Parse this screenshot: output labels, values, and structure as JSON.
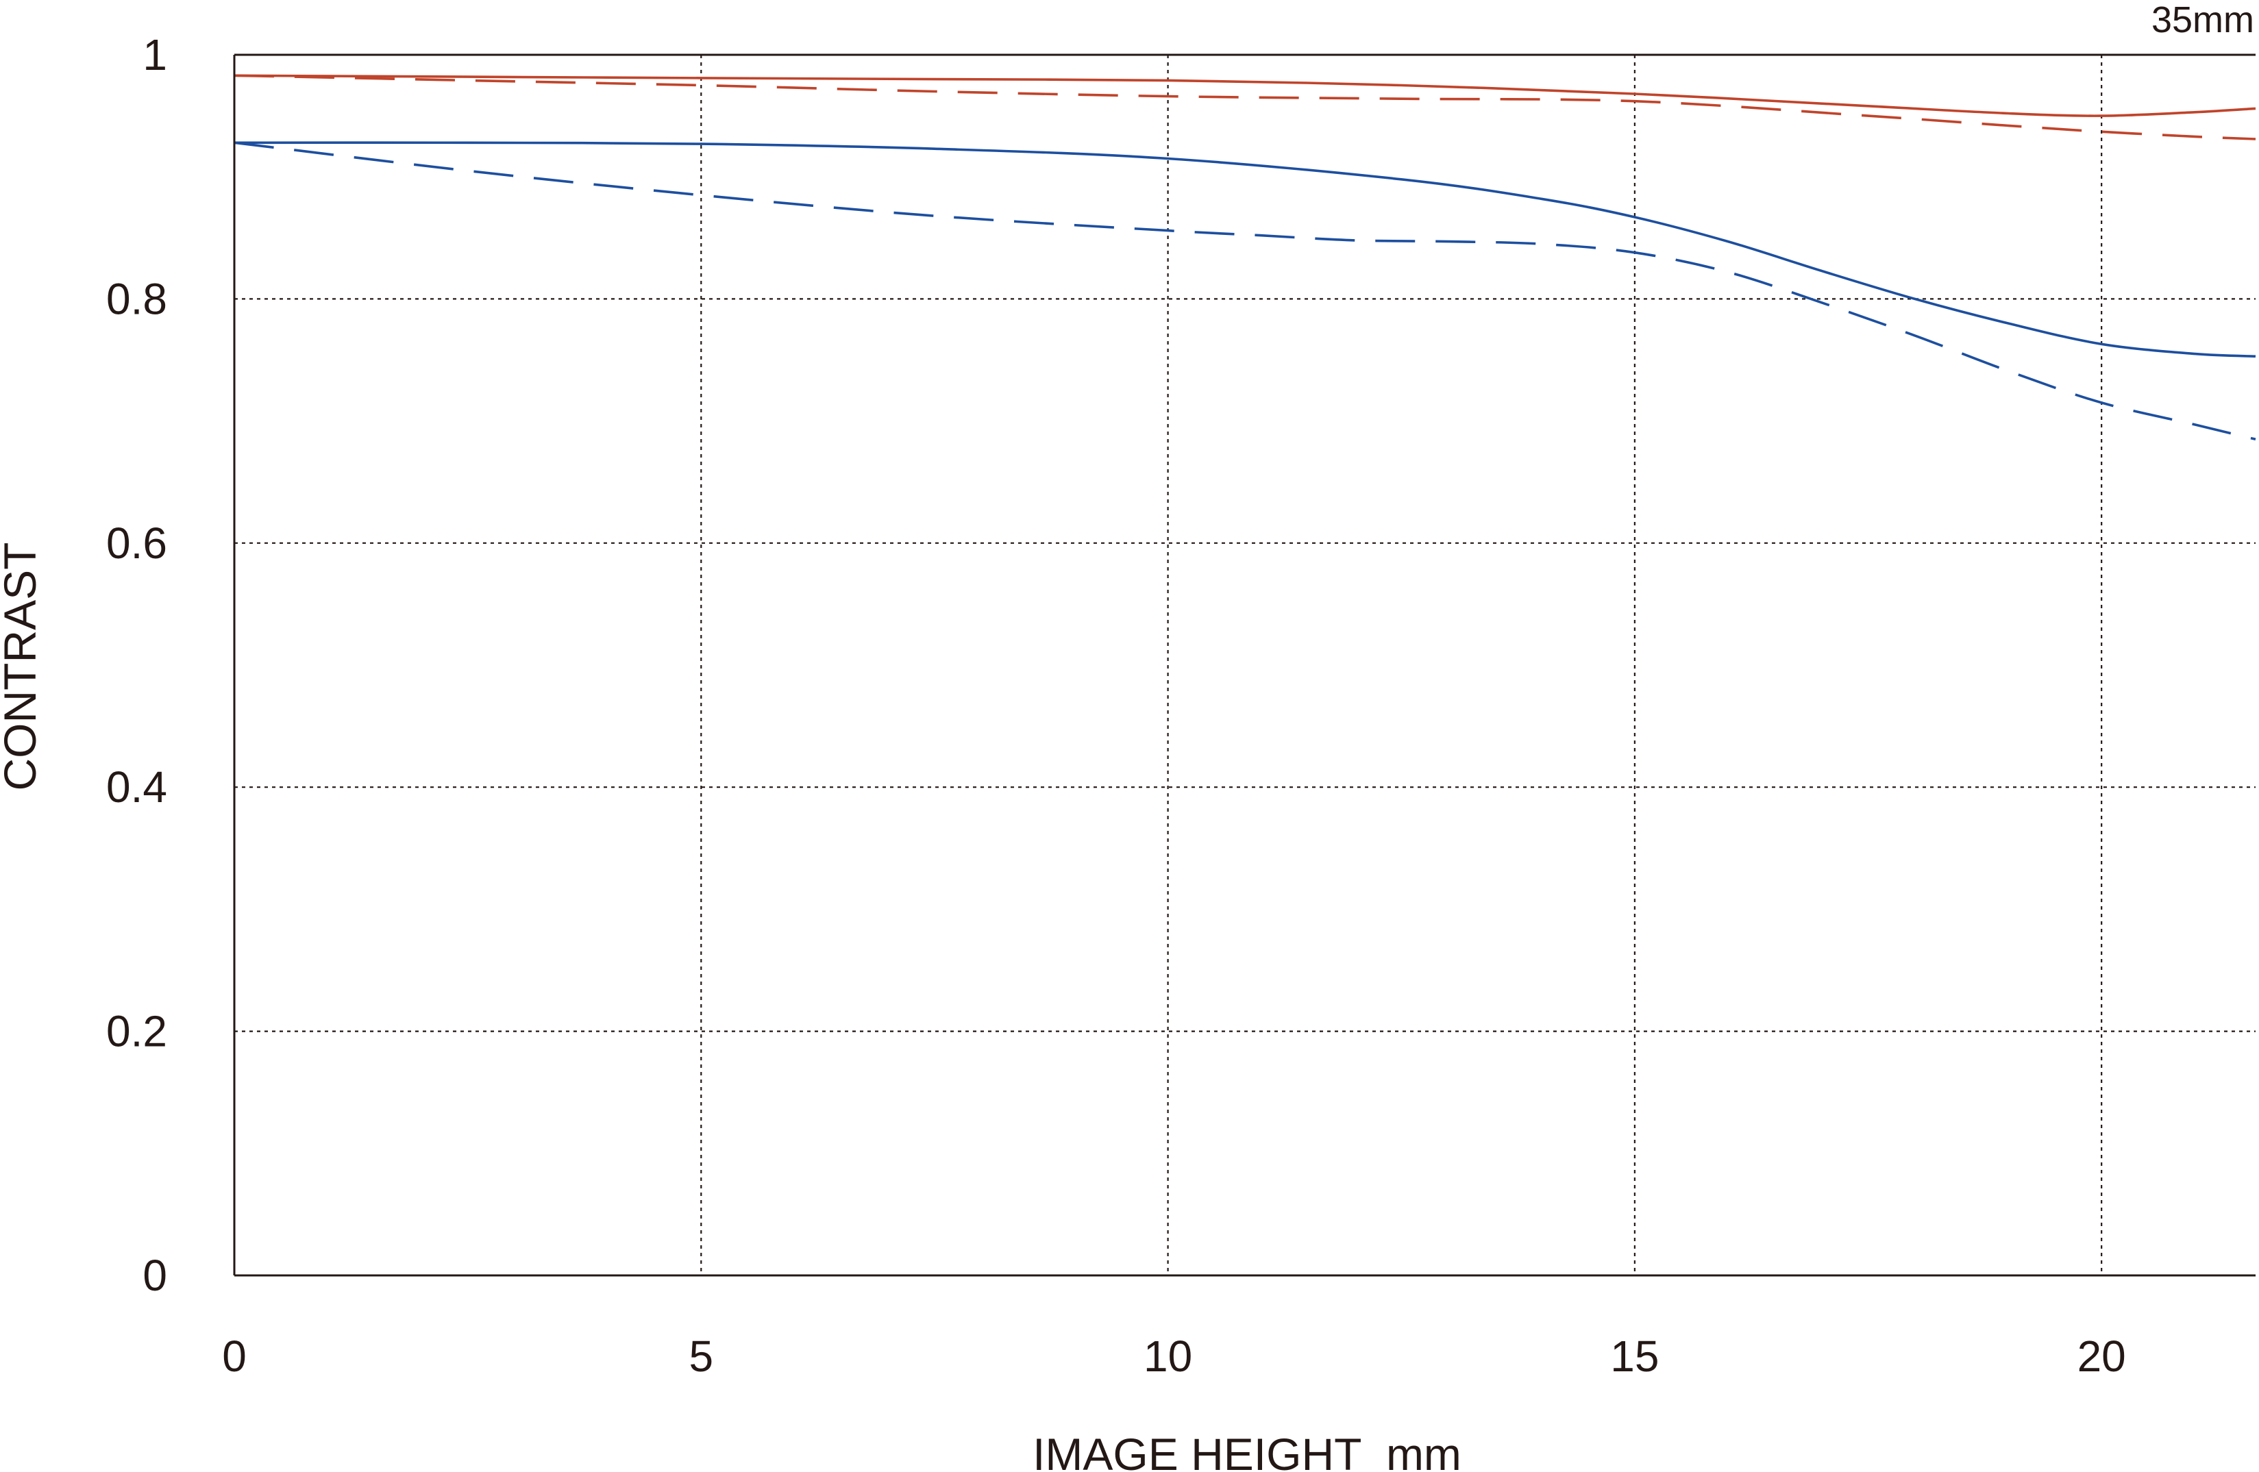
{
  "chart_data": {
    "type": "line",
    "title": "",
    "corner_label": "35mm",
    "xlabel": "IMAGE HEIGHT  mm",
    "ylabel": "CONTRAST",
    "xlim": [
      0,
      21.65
    ],
    "ylim": [
      0,
      1
    ],
    "xticks": [
      {
        "value": 0,
        "label": "0"
      },
      {
        "value": 5,
        "label": "5"
      },
      {
        "value": 10,
        "label": "10"
      },
      {
        "value": 15,
        "label": "15"
      },
      {
        "value": 20,
        "label": "20"
      }
    ],
    "yticks": [
      {
        "value": 0,
        "label": "0"
      },
      {
        "value": 0.2,
        "label": "0.2"
      },
      {
        "value": 0.4,
        "label": "0.4"
      },
      {
        "value": 0.6,
        "label": "0.6"
      },
      {
        "value": 0.8,
        "label": "0.8"
      },
      {
        "value": 1,
        "label": "1"
      }
    ],
    "grid": true,
    "series": [
      {
        "color": "#c0442b",
        "style": "solid",
        "x": [
          0,
          2.5,
          5,
          7.5,
          10,
          12.5,
          15,
          17.5,
          19,
          20,
          21,
          21.65
        ],
        "y": [
          0.983,
          0.982,
          0.981,
          0.98,
          0.979,
          0.975,
          0.968,
          0.958,
          0.952,
          0.95,
          0.953,
          0.956
        ]
      },
      {
        "color": "#c0442b",
        "style": "dashed",
        "x": [
          0,
          2.5,
          5,
          7.5,
          10,
          12.5,
          15,
          17.5,
          19,
          20,
          21,
          21.65
        ],
        "y": [
          0.983,
          0.979,
          0.975,
          0.97,
          0.966,
          0.964,
          0.962,
          0.95,
          0.942,
          0.937,
          0.933,
          0.931
        ]
      },
      {
        "color": "#1d4f9f",
        "style": "solid",
        "x": [
          0,
          2.5,
          5,
          7.5,
          10,
          12.5,
          14,
          15,
          16,
          17,
          18,
          19,
          20,
          21,
          21.65
        ],
        "y": [
          0.928,
          0.928,
          0.927,
          0.923,
          0.915,
          0.898,
          0.882,
          0.867,
          0.847,
          0.823,
          0.8,
          0.78,
          0.763,
          0.755,
          0.753
        ]
      },
      {
        "color": "#1d4f9f",
        "style": "dashed",
        "x": [
          0,
          2.5,
          5,
          7.5,
          10,
          11,
          12,
          13,
          14,
          15,
          16,
          17,
          18,
          19,
          20,
          21,
          21.65
        ],
        "y": [
          0.928,
          0.905,
          0.885,
          0.868,
          0.856,
          0.852,
          0.848,
          0.847,
          0.845,
          0.838,
          0.822,
          0.797,
          0.77,
          0.741,
          0.715,
          0.697,
          0.685
        ]
      }
    ]
  }
}
